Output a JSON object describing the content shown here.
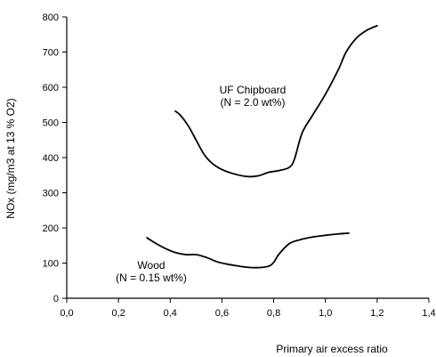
{
  "chart_data": {
    "type": "line",
    "title": "",
    "xlabel": "Primary air excess ratio",
    "ylabel": "NOx (mg/m3 at 13 % O2)",
    "xlim": [
      0,
      1.4
    ],
    "ylim": [
      0,
      800
    ],
    "x_ticks": [
      0,
      0.2,
      0.4,
      0.6,
      0.8,
      1.0,
      1.2,
      1.4
    ],
    "x_tick_labels": [
      "0,0",
      "0,2",
      "0,4",
      "0,6",
      "0,8",
      "1,0",
      "1,2",
      "1,4"
    ],
    "y_ticks": [
      0,
      100,
      200,
      300,
      400,
      500,
      600,
      700,
      800
    ],
    "y_tick_labels": [
      "0",
      "100",
      "200",
      "300",
      "400",
      "500",
      "600",
      "700",
      "800"
    ],
    "grid": false,
    "series": [
      {
        "name": "UF Chipboard",
        "annotation": [
          "UF Chipboard",
          "(N = 2.0 wt%)"
        ],
        "points": [
          [
            0.42,
            532
          ],
          [
            0.44,
            520
          ],
          [
            0.47,
            490
          ],
          [
            0.5,
            450
          ],
          [
            0.53,
            410
          ],
          [
            0.56,
            385
          ],
          [
            0.6,
            366
          ],
          [
            0.65,
            353
          ],
          [
            0.7,
            346
          ],
          [
            0.74,
            348
          ],
          [
            0.78,
            358
          ],
          [
            0.82,
            363
          ],
          [
            0.86,
            372
          ],
          [
            0.88,
            395
          ],
          [
            0.91,
            470
          ],
          [
            0.95,
            520
          ],
          [
            1.0,
            580
          ],
          [
            1.05,
            650
          ],
          [
            1.08,
            700
          ],
          [
            1.12,
            740
          ],
          [
            1.16,
            762
          ],
          [
            1.2,
            775
          ]
        ]
      },
      {
        "name": "Wood",
        "annotation": [
          "Wood",
          "(N = 0.15 wt%)"
        ],
        "points": [
          [
            0.31,
            172
          ],
          [
            0.34,
            158
          ],
          [
            0.38,
            142
          ],
          [
            0.42,
            130
          ],
          [
            0.46,
            124
          ],
          [
            0.5,
            124
          ],
          [
            0.54,
            116
          ],
          [
            0.58,
            104
          ],
          [
            0.62,
            97
          ],
          [
            0.66,
            92
          ],
          [
            0.7,
            88
          ],
          [
            0.74,
            87
          ],
          [
            0.78,
            91
          ],
          [
            0.8,
            102
          ],
          [
            0.82,
            125
          ],
          [
            0.86,
            155
          ],
          [
            0.9,
            166
          ],
          [
            0.95,
            174
          ],
          [
            1.0,
            179
          ],
          [
            1.05,
            183
          ],
          [
            1.09,
            185
          ]
        ]
      }
    ]
  }
}
